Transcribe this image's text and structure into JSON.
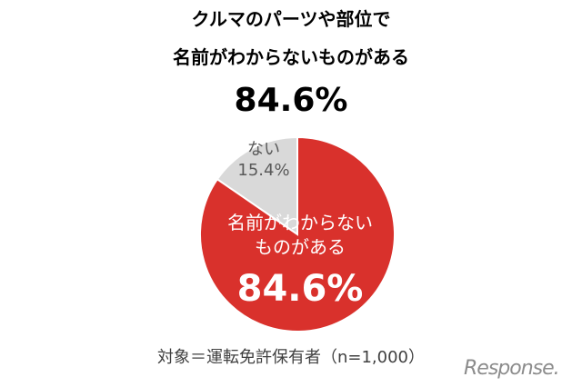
{
  "chart_data": {
    "type": "pie",
    "title": [
      "クルマのパーツや部位で",
      "名前がわからないものがある"
    ],
    "headline": "84.6%",
    "categories": [
      "ない",
      "名前がわからない\nものがある"
    ],
    "values": [
      15.4,
      84.6
    ],
    "value_labels": [
      "15.4%",
      "84.6%"
    ],
    "colors": [
      "#d9d9d9",
      "#d9312c"
    ],
    "label_colors": [
      "#595959",
      "#ffffff"
    ],
    "note": "対象＝運転免許保有者（n=1,000）",
    "watermark": "Response."
  }
}
